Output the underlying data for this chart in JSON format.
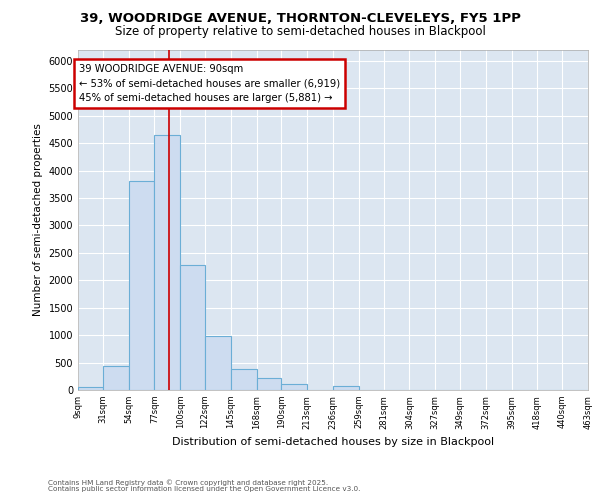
{
  "title_line1": "39, WOODRIDGE AVENUE, THORNTON-CLEVELEYS, FY5 1PP",
  "title_line2": "Size of property relative to semi-detached houses in Blackpool",
  "xlabel": "Distribution of semi-detached houses by size in Blackpool",
  "ylabel": "Number of semi-detached properties",
  "footnote": "Contains HM Land Registry data © Crown copyright and database right 2025.\nContains public sector information licensed under the Open Government Licence v3.0.",
  "bar_edges": [
    9,
    31,
    54,
    77,
    100,
    122,
    145,
    168,
    190,
    213,
    236,
    259,
    281,
    304,
    327,
    349,
    372,
    395,
    418,
    440,
    463
  ],
  "bar_heights": [
    50,
    430,
    3820,
    4650,
    2280,
    980,
    390,
    220,
    110,
    0,
    80,
    0,
    0,
    0,
    0,
    0,
    0,
    0,
    0,
    0
  ],
  "bar_color": "#cddcf0",
  "bar_edge_color": "#6baed6",
  "vline_x": 90,
  "vline_color": "#cc0000",
  "annotation_text_line1": "39 WOODRIDGE AVENUE: 90sqm",
  "annotation_text_line2": "← 53% of semi-detached houses are smaller (6,919)",
  "annotation_text_line3": "45% of semi-detached houses are larger (5,881) →",
  "annotation_box_color": "#cc0000",
  "ylim": [
    0,
    6200
  ],
  "yticks": [
    0,
    500,
    1000,
    1500,
    2000,
    2500,
    3000,
    3500,
    4000,
    4500,
    5000,
    5500,
    6000
  ],
  "plot_bg_color": "#dce6f1",
  "tick_labels": [
    "9sqm",
    "31sqm",
    "54sqm",
    "77sqm",
    "100sqm",
    "122sqm",
    "145sqm",
    "168sqm",
    "190sqm",
    "213sqm",
    "236sqm",
    "259sqm",
    "281sqm",
    "304sqm",
    "327sqm",
    "349sqm",
    "372sqm",
    "395sqm",
    "418sqm",
    "440sqm",
    "463sqm"
  ]
}
